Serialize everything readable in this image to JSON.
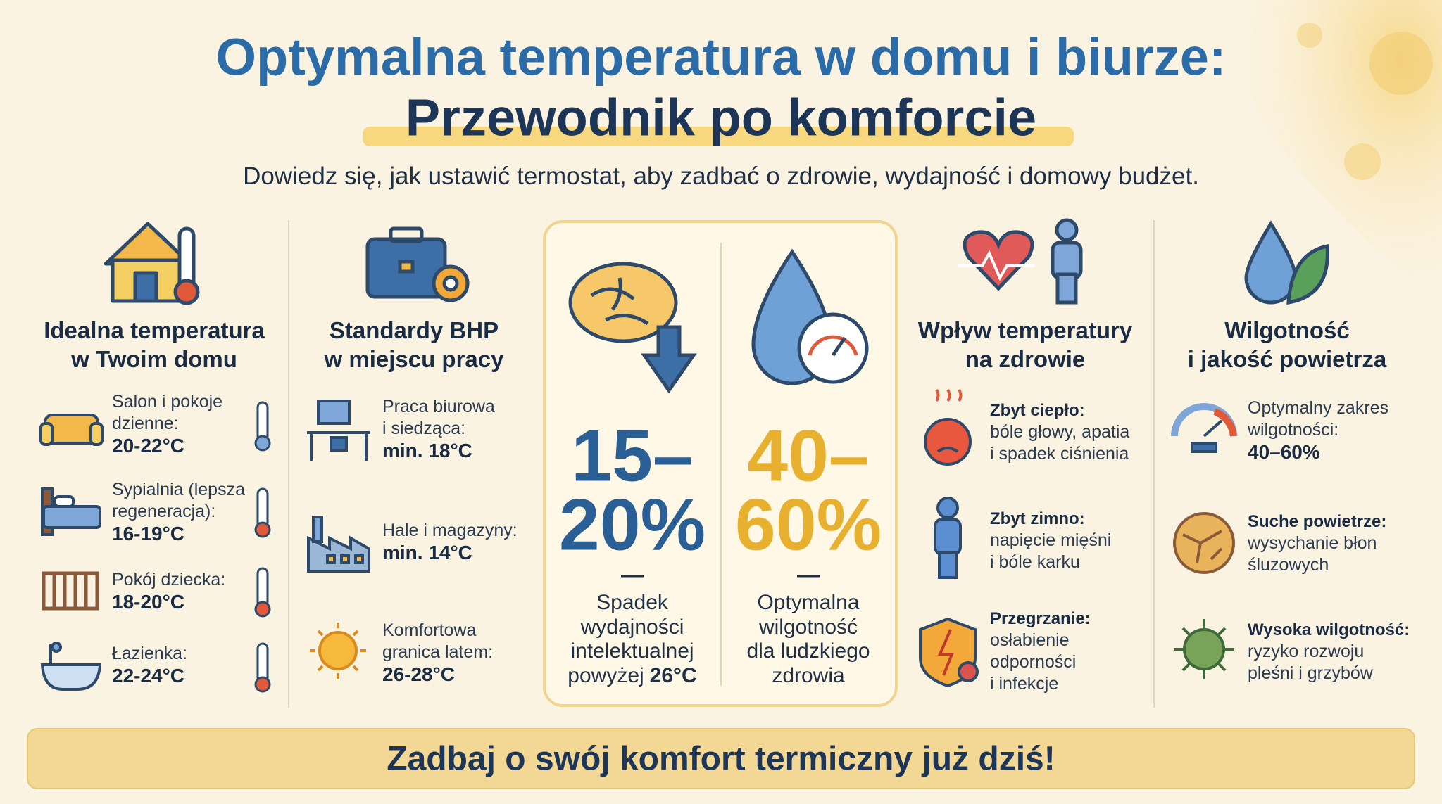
{
  "header": {
    "title_line1": "Optymalna temperatura w domu i biurze:",
    "title_line2": "Przewodnik po komforcie",
    "subtitle": "Dowiedz się, jak ustawić termostat, aby zadbać o zdrowie, wydajność i domowy budżet."
  },
  "columns": [
    {
      "heading": [
        "Idealna temperatura",
        "w Twoim domu"
      ],
      "items": [
        {
          "lines": [
            "Salon i pokoje",
            "dzienne:"
          ],
          "value": "20-22°C"
        },
        {
          "lines": [
            "Sypialnia (lepsza",
            "regeneracja):"
          ],
          "value": "16-19°C"
        },
        {
          "lines": [
            "Pokój dziecka:"
          ],
          "value": "18-20°C"
        },
        {
          "lines": [
            "Łazienka:"
          ],
          "value": "22-24°C"
        }
      ]
    },
    {
      "heading": [
        "Standardy BHP",
        "w miejscu pracy"
      ],
      "items": [
        {
          "lines": [
            "Praca biurowa",
            "i siedząca:"
          ],
          "value": "min. 18°C"
        },
        {
          "lines": [
            "Hale i magazyny:"
          ],
          "value": "min. 14°C"
        },
        {
          "lines": [
            "Komfortowa",
            "granica latem:"
          ],
          "value": "26-28°C"
        }
      ]
    },
    {
      "heading": [
        "Wpływ temperatury",
        "na zdrowie"
      ],
      "items": [
        {
          "title": "Zbyt ciepło:",
          "lines": [
            "bóle głowy, apatia",
            "i spadek ciśnienia"
          ]
        },
        {
          "title": "Zbyt zimno:",
          "lines": [
            "napięcie mięśni",
            "i bóle karku"
          ]
        },
        {
          "title": "Przegrzanie:",
          "lines": [
            "osłabienie",
            "odporności",
            "i infekcje"
          ]
        }
      ]
    },
    {
      "heading": [
        "Wilgotność",
        "i jakość powietrza"
      ],
      "items": [
        {
          "lines": [
            "Optymalny zakres",
            "wilgotności:"
          ],
          "value": "40–60%"
        },
        {
          "title": "Suche powietrze:",
          "lines": [
            "wysychanie błon",
            "śluzowych"
          ]
        },
        {
          "title": "Wysoka wilgotność:",
          "lines": [
            "ryzyko rozwoju",
            "pleśni i grzybów"
          ]
        }
      ]
    }
  ],
  "center": [
    {
      "value": [
        "15–",
        "20%"
      ],
      "desc": [
        "Spadek",
        "wydajności",
        "intelektualnej"
      ],
      "desc_end": {
        "text": "powyżej",
        "bold": "26°C"
      }
    },
    {
      "value": [
        "40–",
        "60%"
      ],
      "desc": [
        "Optymalna",
        "wilgotność",
        "dla ludzkiego",
        "zdrowia"
      ]
    }
  ],
  "footer": "Zadbaj o swój komfort termiczny już dziś!"
}
